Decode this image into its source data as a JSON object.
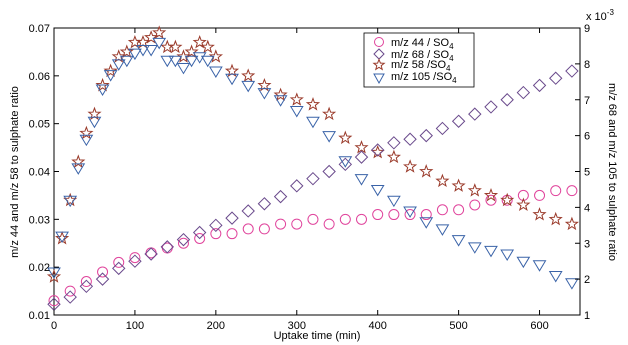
{
  "chart_data": {
    "type": "scatter",
    "title": "",
    "xlabel": "Uptake time (min)",
    "ylabel_left": "m/z 44 and m/z 58 to sulphate ratio",
    "ylabel_right": "m/z 68 and m/z 105 to sulphate ratio",
    "xlim": [
      0,
      650
    ],
    "ylim_left": [
      0.01,
      0.07
    ],
    "ylim_right": [
      1,
      9
    ],
    "right_axis_multiplier": "x 10",
    "right_axis_exponent": "-3",
    "x_ticks": [
      "0",
      "100",
      "200",
      "300",
      "400",
      "500",
      "600"
    ],
    "y_left_ticks": [
      "0.01",
      "0.02",
      "0.03",
      "0.04",
      "0.05",
      "0.06",
      "0.07"
    ],
    "y_right_ticks": [
      "1",
      "2",
      "3",
      "4",
      "5",
      "6",
      "7",
      "8",
      "9"
    ],
    "grid": false,
    "legend_position": "top-right",
    "legend": [
      {
        "label": "m/z 44 / SO",
        "sub": "4",
        "marker": "circle",
        "color": "#e0449c"
      },
      {
        "label": "m/z 68 / SO",
        "sub": "4",
        "marker": "diamond",
        "color": "#6a4a8c"
      },
      {
        "label": "m/z 58 /SO",
        "sub": "4",
        "marker": "star",
        "color": "#9a3a2a"
      },
      {
        "label": "m/z 105 /SO",
        "sub": "4",
        "marker": "triangle-down",
        "color": "#3a63a8"
      }
    ],
    "series": [
      {
        "name": "m/z 44 / SO4",
        "axis": "left",
        "marker": "circle",
        "color": "#e0449c",
        "x": [
          0,
          20,
          40,
          60,
          80,
          100,
          120,
          140,
          160,
          180,
          200,
          220,
          240,
          260,
          280,
          300,
          320,
          340,
          360,
          380,
          400,
          420,
          440,
          460,
          480,
          500,
          520,
          540,
          560,
          580,
          600,
          620,
          640
        ],
        "y": [
          0.013,
          0.015,
          0.017,
          0.019,
          0.021,
          0.022,
          0.023,
          0.024,
          0.025,
          0.026,
          0.027,
          0.027,
          0.028,
          0.028,
          0.029,
          0.029,
          0.03,
          0.029,
          0.03,
          0.03,
          0.031,
          0.031,
          0.031,
          0.031,
          0.032,
          0.032,
          0.033,
          0.034,
          0.034,
          0.035,
          0.035,
          0.036,
          0.036
        ]
      },
      {
        "name": "m/z 58 / SO4",
        "axis": "left",
        "marker": "star",
        "color": "#9a3a2a",
        "x": [
          0,
          10,
          20,
          30,
          40,
          50,
          60,
          70,
          80,
          90,
          100,
          110,
          120,
          130,
          140,
          150,
          160,
          170,
          180,
          190,
          200,
          220,
          240,
          260,
          280,
          300,
          320,
          340,
          360,
          380,
          400,
          420,
          440,
          460,
          480,
          500,
          520,
          540,
          560,
          580,
          600,
          620,
          640
        ],
        "y": [
          0.018,
          0.026,
          0.034,
          0.042,
          0.048,
          0.052,
          0.058,
          0.061,
          0.064,
          0.065,
          0.067,
          0.067,
          0.068,
          0.069,
          0.066,
          0.066,
          0.064,
          0.065,
          0.067,
          0.066,
          0.064,
          0.061,
          0.06,
          0.058,
          0.056,
          0.055,
          0.054,
          0.052,
          0.047,
          0.045,
          0.044,
          0.043,
          0.041,
          0.04,
          0.038,
          0.037,
          0.036,
          0.035,
          0.034,
          0.033,
          0.031,
          0.03,
          0.029
        ]
      },
      {
        "name": "m/z 68 / SO4",
        "axis": "right",
        "marker": "diamond",
        "color": "#6a4a8c",
        "x": [
          0,
          20,
          40,
          60,
          80,
          100,
          120,
          140,
          160,
          180,
          200,
          220,
          240,
          260,
          280,
          300,
          320,
          340,
          360,
          380,
          400,
          420,
          440,
          460,
          480,
          500,
          520,
          540,
          560,
          580,
          600,
          620,
          640
        ],
        "y": [
          1.3,
          1.5,
          1.8,
          2.0,
          2.3,
          2.5,
          2.7,
          2.9,
          3.1,
          3.3,
          3.5,
          3.7,
          3.9,
          4.1,
          4.3,
          4.6,
          4.8,
          5.0,
          5.2,
          5.4,
          5.6,
          5.8,
          5.9,
          6.0,
          6.2,
          6.4,
          6.6,
          6.8,
          7.0,
          7.2,
          7.4,
          7.6,
          7.8
        ]
      },
      {
        "name": "m/z 105 / SO4",
        "axis": "right",
        "marker": "triangle-down",
        "color": "#3a63a8",
        "x": [
          0,
          10,
          20,
          30,
          40,
          50,
          60,
          70,
          80,
          90,
          100,
          110,
          120,
          130,
          140,
          150,
          160,
          170,
          180,
          190,
          200,
          220,
          240,
          260,
          280,
          300,
          320,
          340,
          360,
          380,
          400,
          420,
          440,
          460,
          480,
          500,
          520,
          540,
          560,
          580,
          600,
          620,
          640
        ],
        "y": [
          2.2,
          3.2,
          4.2,
          5.1,
          5.9,
          6.4,
          7.3,
          7.7,
          8.0,
          8.1,
          8.3,
          8.4,
          8.4,
          8.6,
          8.1,
          8.1,
          7.9,
          8.1,
          8.2,
          8.1,
          7.8,
          7.6,
          7.4,
          7.2,
          7.0,
          6.7,
          6.4,
          6.0,
          5.3,
          4.8,
          4.5,
          4.2,
          3.9,
          3.6,
          3.4,
          3.1,
          2.9,
          2.8,
          2.7,
          2.5,
          2.4,
          2.1,
          1.9
        ]
      }
    ]
  }
}
